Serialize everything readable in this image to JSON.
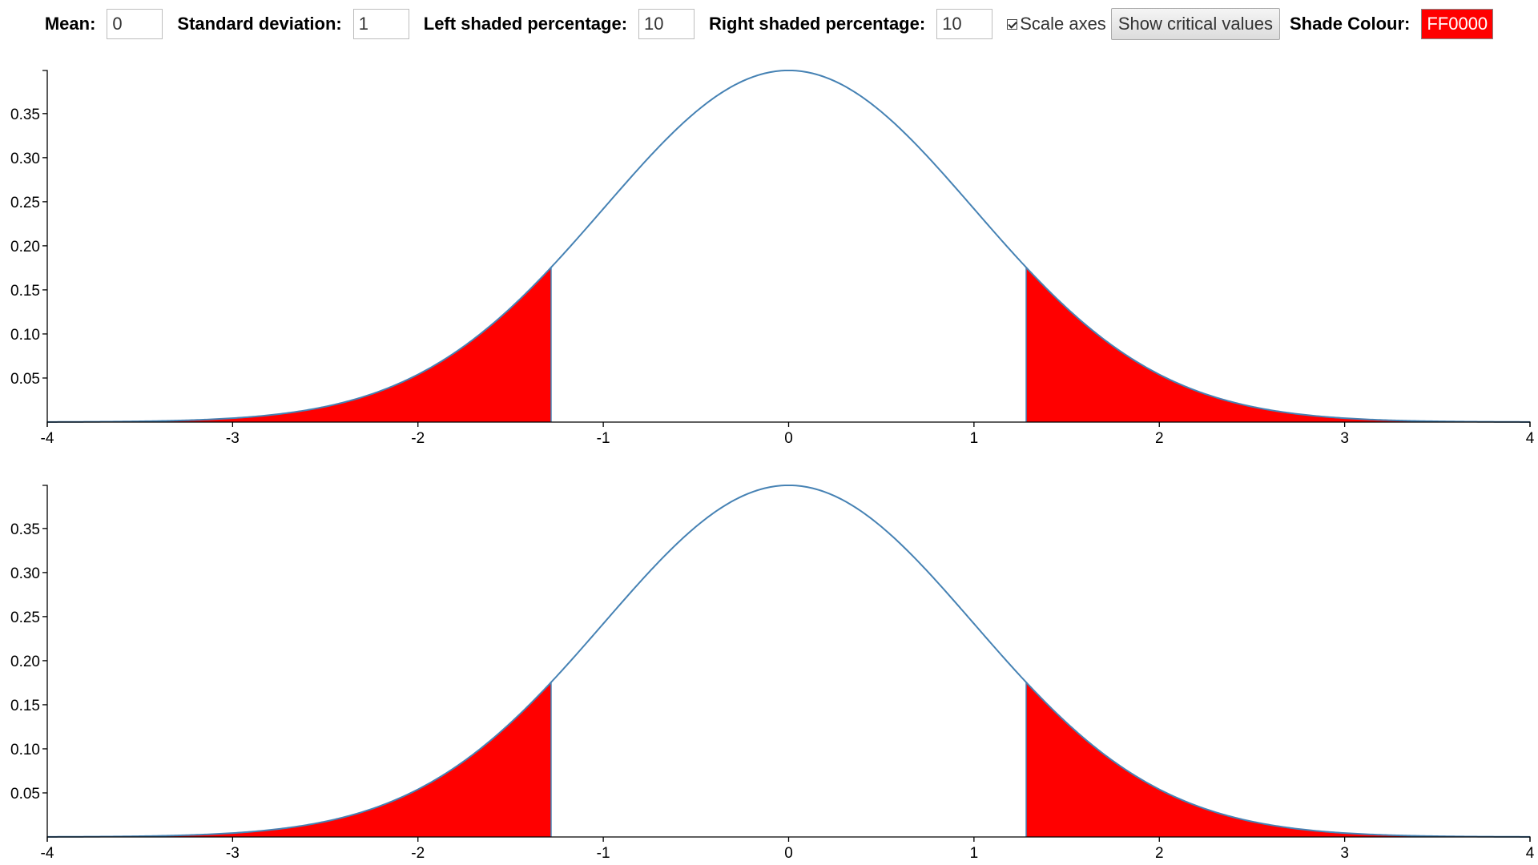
{
  "controls": {
    "mean_label": "Mean:",
    "mean_value": "0",
    "sd_label": "Standard deviation:",
    "sd_value": "1",
    "left_label": "Left shaded percentage:",
    "left_value": "10",
    "right_label": "Right shaded percentage:",
    "right_value": "10",
    "scale_axes_label": "Scale axes",
    "scale_axes_checked": true,
    "critical_button": "Show critical values",
    "shade_label": "Shade Colour:",
    "shade_value": "FF0000"
  },
  "colors": {
    "shade": "#FF0000",
    "curve": "#4682B4"
  },
  "chart_data": [
    {
      "type": "area",
      "distribution": "normal",
      "mean": 0,
      "sd": 1,
      "left_shaded_percent": 10,
      "right_shaded_percent": 10,
      "left_cutoff": -1.2816,
      "right_cutoff": 1.2816,
      "xlim": [
        -4,
        4
      ],
      "ylim": [
        0,
        0.3989
      ],
      "x_ticks": [
        -4,
        -3,
        -2,
        -1,
        0,
        1,
        2,
        3,
        4
      ],
      "x_tick_labels": [
        "-4",
        "-3",
        "-2",
        "-1",
        "0",
        "1",
        "2",
        "3",
        "4"
      ],
      "y_ticks": [
        0.05,
        0.1,
        0.15,
        0.2,
        0.25,
        0.3,
        0.35
      ],
      "y_tick_labels": [
        "0.05",
        "0.10",
        "0.15",
        "0.20",
        "0.25",
        "0.30",
        "0.35"
      ],
      "grid": false,
      "title": "",
      "xlabel": "",
      "ylabel": ""
    },
    {
      "type": "area",
      "distribution": "normal",
      "mean": 0,
      "sd": 1,
      "left_shaded_percent": 10,
      "right_shaded_percent": 10,
      "left_cutoff": -1.2816,
      "right_cutoff": 1.2816,
      "xlim": [
        -4,
        4
      ],
      "ylim": [
        0,
        0.3989
      ],
      "x_ticks": [
        -4,
        -3,
        -2,
        -1,
        0,
        1,
        2,
        3,
        4
      ],
      "x_tick_labels": [
        "-4",
        "-3",
        "-2",
        "-1",
        "0",
        "1",
        "2",
        "3",
        "4"
      ],
      "y_ticks": [
        0.05,
        0.1,
        0.15,
        0.2,
        0.25,
        0.3,
        0.35
      ],
      "y_tick_labels": [
        "0.05",
        "0.10",
        "0.15",
        "0.20",
        "0.25",
        "0.30",
        "0.35"
      ],
      "grid": false,
      "title": "",
      "xlabel": "",
      "ylabel": ""
    }
  ]
}
